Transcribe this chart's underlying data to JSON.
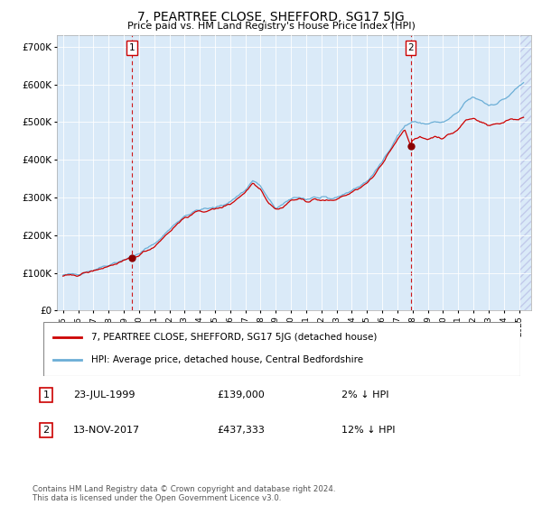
{
  "title": "7, PEARTREE CLOSE, SHEFFORD, SG17 5JG",
  "subtitle": "Price paid vs. HM Land Registry's House Price Index (HPI)",
  "ylabel_ticks": [
    "£0",
    "£100K",
    "£200K",
    "£300K",
    "£400K",
    "£500K",
    "£600K",
    "£700K"
  ],
  "ytick_values": [
    0,
    100000,
    200000,
    300000,
    400000,
    500000,
    600000,
    700000
  ],
  "ylim": [
    0,
    730000
  ],
  "xlim_start": 1994.6,
  "xlim_end": 2025.8,
  "xticks": [
    1995,
    1996,
    1997,
    1998,
    1999,
    2000,
    2001,
    2002,
    2003,
    2004,
    2005,
    2006,
    2007,
    2008,
    2009,
    2010,
    2011,
    2012,
    2013,
    2014,
    2015,
    2016,
    2017,
    2018,
    2019,
    2020,
    2021,
    2022,
    2023,
    2024,
    2025
  ],
  "bg_color": "#daeaf8",
  "hpi_color": "#6baed6",
  "price_color": "#cc0000",
  "marker_color": "#8b0000",
  "dashed_line_color": "#cc0000",
  "purchase1_x": 1999.55,
  "purchase1_y": 139000,
  "purchase2_x": 2017.87,
  "purchase2_y": 437333,
  "legend_label1": "7, PEARTREE CLOSE, SHEFFORD, SG17 5JG (detached house)",
  "legend_label2": "HPI: Average price, detached house, Central Bedfordshire",
  "sale1_date": "23-JUL-1999",
  "sale1_price": "£139,000",
  "sale1_hpi": "2% ↓ HPI",
  "sale2_date": "13-NOV-2017",
  "sale2_price": "£437,333",
  "sale2_hpi": "12% ↓ HPI",
  "footer": "Contains HM Land Registry data © Crown copyright and database right 2024.\nThis data is licensed under the Open Government Licence v3.0."
}
